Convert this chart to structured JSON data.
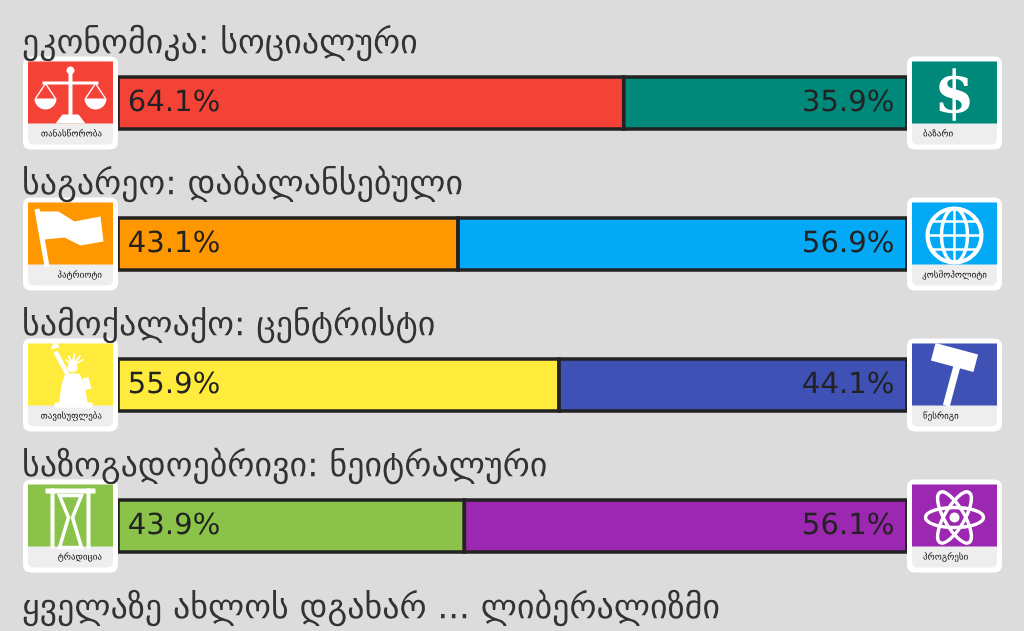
{
  "chart_data": [
    {
      "type": "bar",
      "orientation": "horizontal",
      "stacked": true,
      "title": "ეკონომიკა: სოციალური",
      "categories": [
        null
      ],
      "xlim": [
        0,
        100
      ],
      "tick_labels": false,
      "series": [
        {
          "name": "თანასწორობა",
          "color": "#f44336",
          "values": [
            64.1
          ],
          "value_labels": [
            "64.1%"
          ]
        },
        {
          "name": "ბაზარი",
          "color": "#00897b",
          "values": [
            35.9
          ],
          "value_labels": [
            "35.9%"
          ]
        }
      ]
    },
    {
      "type": "bar",
      "orientation": "horizontal",
      "stacked": true,
      "title": "საგარეო: დაბალანსებული",
      "categories": [
        null
      ],
      "xlim": [
        0,
        100
      ],
      "tick_labels": false,
      "series": [
        {
          "name": "პატრიოტი",
          "color": "#ff9800",
          "values": [
            43.1
          ],
          "value_labels": [
            "43.1%"
          ]
        },
        {
          "name": "კოსმოპოლიტი",
          "color": "#03a9f4",
          "values": [
            56.9
          ],
          "value_labels": [
            "56.9%"
          ]
        }
      ]
    },
    {
      "type": "bar",
      "orientation": "horizontal",
      "stacked": true,
      "title": "სამოქალაქო: ცენტრისტი",
      "categories": [
        null
      ],
      "xlim": [
        0,
        100
      ],
      "tick_labels": false,
      "series": [
        {
          "name": "თავისუფლება",
          "color": "#ffeb3b",
          "values": [
            55.9
          ],
          "value_labels": [
            "55.9%"
          ]
        },
        {
          "name": "წესრიგი",
          "color": "#3f51b5",
          "values": [
            44.1
          ],
          "value_labels": [
            "44.1%"
          ]
        }
      ]
    },
    {
      "type": "bar",
      "orientation": "horizontal",
      "stacked": true,
      "title": "საზოგადოებრივი: ნეიტრალური",
      "categories": [
        null
      ],
      "xlim": [
        0,
        100
      ],
      "tick_labels": false,
      "series": [
        {
          "name": "ტრადიცია",
          "color": "#8bc34a",
          "values": [
            43.9
          ],
          "value_labels": [
            "43.9%"
          ]
        },
        {
          "name": "პროგრესი",
          "color": "#9c27b0",
          "values": [
            56.1
          ],
          "value_labels": [
            "56.1%"
          ]
        }
      ],
      "annotations": [
        "ყველაზე ახლოს დგახარ ... ლიბერალიზმი"
      ]
    }
  ]
}
